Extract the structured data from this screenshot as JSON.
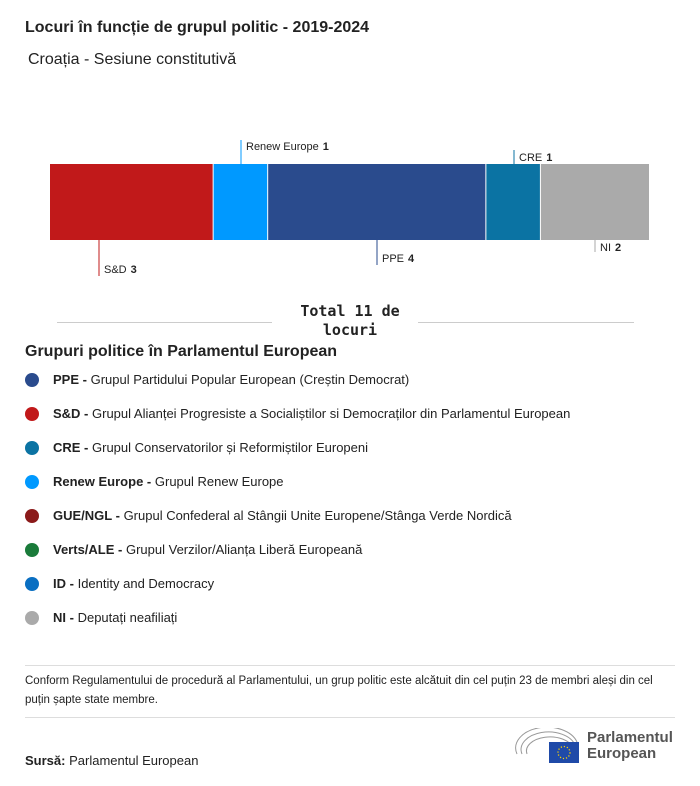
{
  "title": "Locuri în funcție de grupul politic - 2019-2024",
  "subtitle": "Croația - Sesiune constitutivă",
  "chart_data": {
    "type": "bar",
    "orientation": "stacked-horizontal",
    "categories": [
      "S&D",
      "Renew Europe",
      "PPE",
      "CRE",
      "NI"
    ],
    "values": [
      3,
      1,
      4,
      1,
      2
    ],
    "colors": [
      "#c1191a",
      "#0099ff",
      "#2a4b8d",
      "#0b73a3",
      "#aaaaaa"
    ],
    "total_label": "Total 11 de locuri"
  },
  "legend": {
    "title": "Grupuri politice în Parlamentul European",
    "items": [
      {
        "abbr": "PPE -",
        "name": "Grupul Partidului Popular European (Creștin Democrat)",
        "color": "#2a4b8d"
      },
      {
        "abbr": "S&D -",
        "name": "Grupul Alianței Progresiste a Socialiștilor si Democraților din Parlamentul European",
        "color": "#c1191a"
      },
      {
        "abbr": "CRE -",
        "name": "Grupul Conservatorilor și Reformiștilor Europeni",
        "color": "#0b73a3"
      },
      {
        "abbr": "Renew Europe -",
        "name": "Grupul Renew Europe",
        "color": "#0099ff"
      },
      {
        "abbr": "GUE/NGL -",
        "name": "Grupul Confederal al Stângii Unite Europene/Stânga Verde Nordică",
        "color": "#8b1a1a"
      },
      {
        "abbr": "Verts/ALE -",
        "name": "Grupul Verzilor/Alianța Liberă Europeană",
        "color": "#1a7b3a"
      },
      {
        "abbr": "ID -",
        "name": "Identity and Democracy",
        "color": "#0a6fc2"
      },
      {
        "abbr": "NI -",
        "name": "Deputați neafiliați",
        "color": "#aaaaaa"
      }
    ]
  },
  "note": "Conform Regulamentului de procedură al Parlamentului, un grup politic este alcătuit din cel puțin 23 de membri aleși din cel puțin șapte state membre.",
  "source": {
    "label": "Sursă:",
    "value": "Parlamentul European"
  },
  "logo": {
    "line1": "Parlamentul",
    "line2": "European"
  }
}
